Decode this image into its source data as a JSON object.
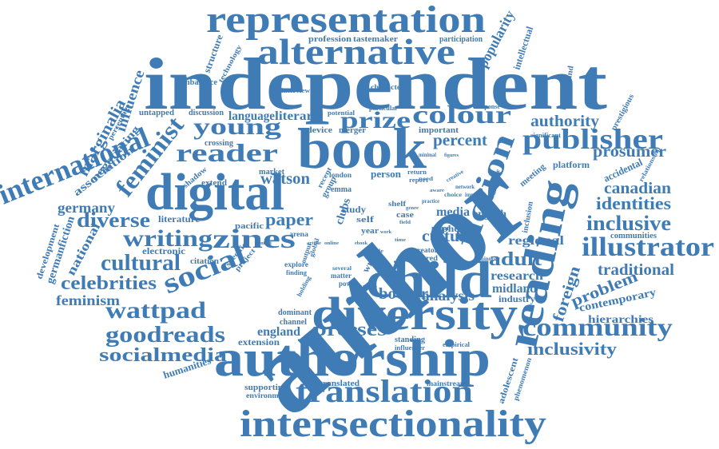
{
  "colors": {
    "word": "#3f7bb5",
    "background": "#ffffff"
  },
  "words": {
    "author": "author",
    "independent": "independent",
    "representation": "representation",
    "alternative": "alternative",
    "book": "book",
    "digital": "digital",
    "child": "child",
    "diversity": "diversity",
    "authorship": "authorship",
    "intersectionality": "intersectionality",
    "translation": "translation",
    "reading": "reading",
    "fiction": "fiction",
    "publisher": "publisher",
    "illustrator": "illustrator",
    "community": "community",
    "international": "international",
    "feminist": "feminist",
    "social": "social",
    "reader": "reader",
    "young": "young",
    "colour": "colour",
    "prize": "prize",
    "zines": "zines",
    "writing": "writing",
    "wattpad": "wattpad",
    "goodreads": "goodreads",
    "socialmedia": "socialmedia",
    "cultural": "cultural",
    "celebrities": "celebrities",
    "diverse": "diverse",
    "presses": "presses",
    "inclusivity": "inclusivity",
    "inclusive": "inclusive",
    "identities": "identities",
    "canadian": "canadian",
    "prosumer": "prosumer",
    "authority": "authority",
    "adult": "adult",
    "foreign": "foreign",
    "problem": "problem",
    "traditional": "traditional",
    "regional": "regional",
    "research": "research",
    "midland": "midland",
    "culture": "culture",
    "booker": "booker",
    "analysis": "analysis",
    "percent": "percent",
    "paper": "paper",
    "watson": "watson",
    "marginalia": "marginalia",
    "influence": "influence",
    "germany": "germany",
    "feminism": "feminism",
    "association": "association",
    "negotiating": "negotiating",
    "national": "national",
    "germanfiction": "germanfiction",
    "popularity": "popularity",
    "intellectual": "intellectual",
    "contemporary": "contemporary",
    "hierarchies": "hierarchies",
    "adolescent": "adolescent",
    "phenomenon": "phenomenon",
    "platform": "platform",
    "accidental": "accidental",
    "england": "england",
    "extension": "extension",
    "humanities": "humanities",
    "supporting": "supporting",
    "environment": "environment",
    "translated": "translated",
    "mainstream": "mainstream",
    "language": "language",
    "literary": "literary",
    "profession": "profession",
    "tastemaker": "tastemaker",
    "participation": "participation",
    "media": "media",
    "english": "english",
    "sphere": "sphere",
    "industry": "industry",
    "communities": "communities",
    "inclusion": "inclusion",
    "meeting": "meeting",
    "significant": "significant",
    "prestigious": "prestigious",
    "relationship": "relationship",
    "background": "background",
    "character": "character",
    "structure": "structure",
    "technology": "technology",
    "imbalance": "imbalance",
    "interview": "interview",
    "untapped": "untapped",
    "discussion": "discussion",
    "crossing": "crossing",
    "potential": "potential",
    "particular": "particular",
    "device": "device",
    "merger": "merger",
    "important": "important",
    "response": "response",
    "market": "market",
    "extend": "extend",
    "shadow": "shadow",
    "literature": "literature",
    "pacific": "pacific",
    "electronic": "electronic",
    "citation": "citation",
    "development": "development",
    "percentage": "percentage",
    "dominant": "dominant",
    "channel": "channel",
    "standing": "standing",
    "influencer": "influencer",
    "empirical": "empirical",
    "clubs": "clubs",
    "group": "group",
    "study": "study",
    "emma": "emma",
    "london": "london",
    "recent": "recent",
    "person": "person",
    "return": "return",
    "report": "report",
    "case": "case",
    "shelf": "shelf",
    "creator": "creator",
    "shared": "shared",
    "today": "today",
    "bame": "bame",
    "power": "power",
    "matter": "matter",
    "explore": "explore",
    "finding": "finding",
    "several": "several",
    "holding": "holding",
    "arena": "arena",
    "specific": "specific",
    "project": "project",
    "output": "output",
    "global": "global",
    "writer": "writer",
    "self": "self",
    "year": "year",
    "need": "need",
    "nation": "nation",
    "creative": "creative",
    "network": "network",
    "choice": "choice",
    "impact": "impact",
    "discourse": "discourse",
    "country": "country",
    "minority": "minority",
    "practice": "practice",
    "aware": "aware",
    "ebook": "ebook",
    "genre": "genre",
    "minimal": "minimal",
    "figures": "figures",
    "work": "work",
    "time": "time",
    "field": "field",
    "context": "context",
    "title": "title",
    "article": "article",
    "online": "online"
  }
}
